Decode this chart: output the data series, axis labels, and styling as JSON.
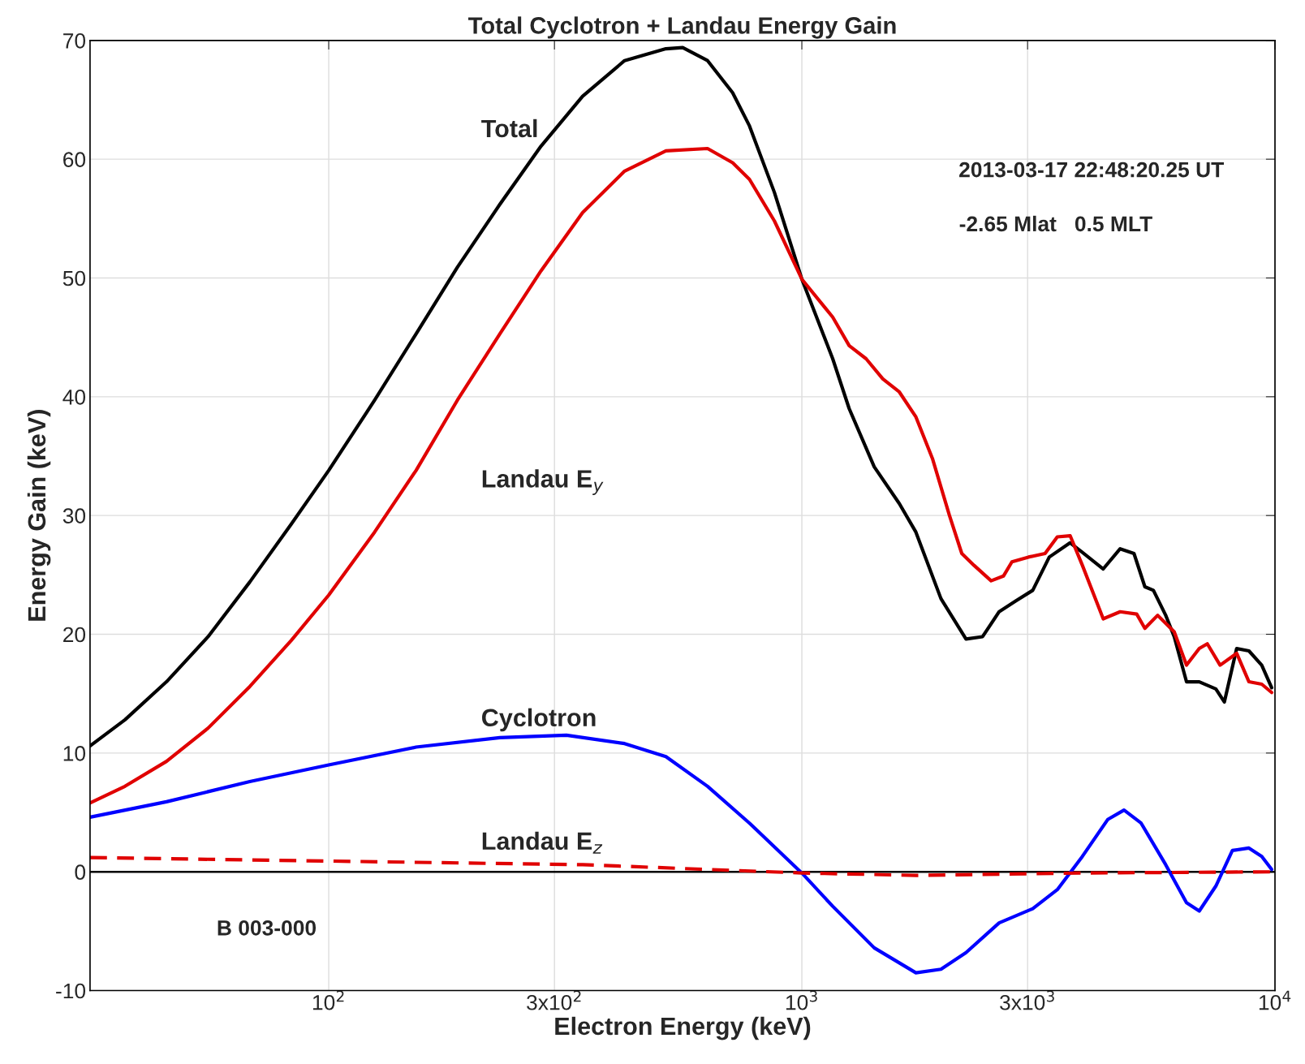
{
  "chart_data": {
    "type": "line",
    "title": "Total Cyclotron + Landau Energy Gain",
    "xlabel": "Electron Energy (keV)",
    "ylabel": "Energy Gain (keV)",
    "log": "x",
    "grid": true,
    "xlim": [
      31.3,
      10000
    ],
    "ylim": [
      -10,
      70
    ],
    "xticks": [
      {
        "value": 100,
        "label": "10$^{2}$"
      },
      {
        "value": 300,
        "label": "3x10$^{2}$"
      },
      {
        "value": 1000,
        "label": "10$^{3}$"
      },
      {
        "value": 3000,
        "label": "3x10$^{3}$"
      },
      {
        "value": 10000,
        "label": "10$^{4}$"
      }
    ],
    "yticks": [
      -10,
      0,
      10,
      20,
      30,
      40,
      50,
      60,
      70
    ],
    "ref_lines": [
      {
        "axis": "y",
        "value": 0,
        "color": "#000000"
      }
    ],
    "annotations": [
      "2013-03-17 22:48:20.25 UT",
      "-2.65 Mlat   0.5 MLT",
      "B 003-000"
    ],
    "series": [
      {
        "name": "Total",
        "color": "#000000",
        "line_style": "solid",
        "x": [
          31.3,
          37.1,
          45.4,
          55.6,
          68.1,
          83.4,
          100,
          125,
          153,
          187,
          230,
          281,
          344,
          422,
          516,
          560,
          632,
          714,
          775,
          875,
          1000,
          1162,
          1259,
          1422,
          1607,
          1742,
          1968,
          2223,
          2410,
          2612,
          2831,
          3076,
          3334,
          3690,
          3917,
          4335,
          4707,
          5035,
          5309,
          5534,
          5875,
          6124,
          6501,
          6918,
          7499,
          7816,
          8299,
          8810,
          9376,
          9840
        ],
        "values": [
          10.6,
          12.8,
          16.0,
          19.8,
          24.4,
          29.3,
          33.8,
          39.7,
          45.3,
          50.9,
          56.2,
          61.1,
          65.3,
          68.3,
          69.3,
          69.4,
          68.3,
          65.6,
          62.8,
          57.2,
          49.9,
          43.2,
          39.0,
          34.1,
          31.0,
          28.6,
          23.0,
          19.6,
          19.8,
          21.9,
          22.8,
          23.7,
          26.5,
          27.7,
          26.9,
          25.5,
          27.2,
          26.8,
          24.0,
          23.7,
          21.6,
          19.8,
          16.0,
          16.0,
          15.4,
          14.3,
          18.8,
          18.6,
          17.4,
          15.5
        ]
      },
      {
        "name": "Landau E$_{y}$",
        "color": "#e00000",
        "line_style": "solid",
        "x": [
          31.3,
          37.1,
          45.4,
          55.6,
          68.1,
          83.4,
          100,
          125,
          153,
          187,
          230,
          281,
          344,
          422,
          516,
          632,
          714,
          775,
          875,
          1000,
          1162,
          1259,
          1367,
          1483,
          1607,
          1742,
          1888,
          2051,
          2178,
          2312,
          2512,
          2667,
          2780,
          3013,
          3266,
          3467,
          3690,
          3917,
          4335,
          4707,
          5102,
          5309,
          5649,
          6124,
          6501,
          6918,
          7194,
          7656,
          8299,
          8810,
          9376,
          9840
        ],
        "values": [
          5.8,
          7.2,
          9.3,
          12.1,
          15.6,
          19.5,
          23.3,
          28.6,
          33.8,
          39.7,
          45.3,
          50.6,
          55.5,
          59.0,
          60.7,
          60.9,
          59.7,
          58.3,
          54.8,
          49.9,
          46.7,
          44.3,
          43.2,
          41.5,
          40.4,
          38.3,
          34.8,
          30.0,
          26.8,
          25.8,
          24.5,
          24.9,
          26.1,
          26.5,
          26.8,
          28.2,
          28.3,
          25.8,
          21.3,
          21.9,
          21.7,
          20.5,
          21.6,
          20.2,
          17.4,
          18.8,
          19.2,
          17.4,
          18.4,
          16.0,
          15.8,
          15.1
        ]
      },
      {
        "name": "Cyclotron",
        "color": "#0000ff",
        "line_style": "solid",
        "x": [
          31.3,
          45.4,
          68.1,
          100,
          153,
          230,
          318,
          422,
          516,
          632,
          775,
          875,
          1000,
          1162,
          1422,
          1742,
          1968,
          2223,
          2612,
          3076,
          3467,
          3917,
          4430,
          4797,
          5212,
          5875,
          6501,
          6918,
          7499,
          8128,
          8810,
          9376,
          9840
        ],
        "values": [
          4.6,
          5.9,
          7.6,
          9.0,
          10.5,
          11.3,
          11.5,
          10.8,
          9.7,
          7.2,
          4.1,
          2.1,
          -0.1,
          -2.9,
          -6.4,
          -8.5,
          -8.2,
          -6.8,
          -4.3,
          -3.1,
          -1.5,
          1.3,
          4.4,
          5.2,
          4.1,
          0.6,
          -2.6,
          -3.3,
          -1.2,
          1.8,
          2.0,
          1.3,
          0.2
        ]
      },
      {
        "name": "Landau E$_{z}$",
        "color": "#e00000",
        "line_style": "dashed",
        "x": [
          31.3,
          68.1,
          153,
          344,
          632,
          1000,
          1742,
          3917,
          9840
        ],
        "values": [
          1.2,
          1.0,
          0.8,
          0.6,
          0.2,
          -0.1,
          -0.3,
          -0.1,
          0.0
        ]
      }
    ]
  }
}
